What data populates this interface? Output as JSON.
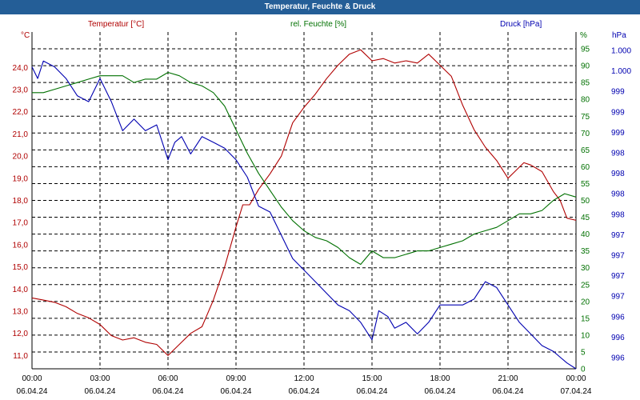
{
  "window": {
    "title": "Temperatur, Feuchte & Druck"
  },
  "colors": {
    "temperature": "#b00000",
    "humidity": "#007000",
    "pressure": "#0000b0",
    "grid": "#000000",
    "titlebar": "#245e97"
  },
  "chart_data": {
    "type": "line",
    "title": "Temperatur, Feuchte & Druck",
    "x_hours": [
      0,
      24
    ],
    "x_ticks": [
      {
        "time": "00:00",
        "date": "06.04.24"
      },
      {
        "time": "03:00",
        "date": "06.04.24"
      },
      {
        "time": "06:00",
        "date": "06.04.24"
      },
      {
        "time": "09:00",
        "date": "06.04.24"
      },
      {
        "time": "12:00",
        "date": "06.04.24"
      },
      {
        "time": "15:00",
        "date": "06.04.24"
      },
      {
        "time": "18:00",
        "date": "06.04.24"
      },
      {
        "time": "21:00",
        "date": "06.04.24"
      },
      {
        "time": "00:00",
        "date": "07.04.24"
      }
    ],
    "axes": {
      "temperature": {
        "label": "Temperatur [°C]",
        "unit": "°C",
        "range": [
          10.4,
          25.6
        ],
        "ticks": [
          "24,0",
          "23,0",
          "22,0",
          "21,0",
          "20,0",
          "19,0",
          "18,0",
          "17,0",
          "16,0",
          "15,0",
          "14,0",
          "13,0",
          "12,0",
          "11,0"
        ]
      },
      "humidity": {
        "label": "rel. Feuchte [%]",
        "unit": "%",
        "range": [
          0,
          100
        ],
        "ticks": [
          "95",
          "90",
          "85",
          "80",
          "75",
          "70",
          "65",
          "60",
          "55",
          "50",
          "45",
          "40",
          "35",
          "30",
          "25",
          "20",
          "15",
          "10",
          "5",
          "0"
        ]
      },
      "pressure": {
        "label": "Druck [hPa]",
        "unit": "hPa",
        "range": [
          995.4,
          1001.2
        ],
        "ticks": [
          "1.000",
          "1.000",
          "999",
          "999",
          "999",
          "998",
          "998",
          "998",
          "998",
          "997",
          "997",
          "997",
          "997",
          "996",
          "996",
          "996"
        ]
      }
    },
    "series": [
      {
        "name": "Temperatur",
        "axis": "temperature",
        "x": [
          0,
          0.5,
          1,
          1.5,
          2,
          2.5,
          3,
          3.5,
          4,
          4.5,
          5,
          5.5,
          6,
          6.5,
          7,
          7.5,
          8,
          8.5,
          9,
          9.3,
          9.6,
          10,
          10.5,
          11,
          11.5,
          12,
          12.5,
          13,
          13.5,
          14,
          14.5,
          15,
          15.5,
          16,
          16.5,
          17,
          17.5,
          18,
          18.5,
          19,
          19.5,
          20,
          20.5,
          21,
          21.3,
          21.7,
          22,
          22.5,
          23,
          23.3,
          23.6,
          24
        ],
        "values": [
          13.6,
          13.5,
          13.4,
          13.2,
          12.9,
          12.7,
          12.4,
          11.9,
          11.7,
          11.8,
          11.6,
          11.5,
          11.0,
          11.5,
          12.0,
          12.3,
          13.5,
          15.0,
          16.8,
          17.8,
          17.8,
          18.5,
          19.2,
          20.0,
          21.5,
          22.2,
          22.8,
          23.5,
          24.1,
          24.6,
          24.8,
          24.3,
          24.4,
          24.2,
          24.3,
          24.2,
          24.6,
          24.1,
          23.6,
          22.3,
          21.2,
          20.4,
          19.8,
          19.0,
          19.3,
          19.7,
          19.6,
          19.3,
          18.4,
          18.0,
          17.2,
          17.1
        ]
      },
      {
        "name": "rel. Feuchte",
        "axis": "humidity",
        "x": [
          0,
          0.5,
          1,
          1.5,
          2,
          2.5,
          3,
          3.5,
          4,
          4.5,
          5,
          5.5,
          6,
          6.5,
          7,
          7.5,
          8,
          8.5,
          9,
          9.5,
          10,
          10.5,
          11,
          11.5,
          12,
          12.5,
          13,
          13.5,
          14,
          14.5,
          15,
          15.5,
          16,
          16.5,
          17,
          17.5,
          18,
          18.5,
          19,
          19.5,
          20,
          20.5,
          21,
          21.5,
          22,
          22.5,
          23,
          23.5,
          24
        ],
        "values": [
          82,
          82,
          83,
          84,
          85,
          86,
          87,
          87,
          87,
          85,
          86,
          86,
          88,
          87,
          85,
          84,
          82,
          78,
          71,
          64,
          58,
          53,
          48,
          44,
          41,
          39,
          38,
          36,
          33,
          31,
          35,
          33,
          33,
          34,
          35,
          35,
          36,
          37,
          38,
          40,
          41,
          42,
          44,
          46,
          46,
          47,
          50,
          52,
          51
        ]
      },
      {
        "name": "Druck",
        "axis": "pressure",
        "x": [
          0,
          0.25,
          0.5,
          1,
          1.5,
          2,
          2.5,
          3,
          3.5,
          4,
          4.5,
          5,
          5.5,
          6,
          6.3,
          6.6,
          7,
          7.5,
          8,
          8.5,
          9,
          9.5,
          10,
          10.5,
          11,
          11.5,
          12,
          12.5,
          13,
          13.5,
          14,
          14.5,
          15,
          15.3,
          15.7,
          16,
          16.5,
          17,
          17.5,
          18,
          18.5,
          19,
          19.5,
          20,
          20.5,
          21,
          21.5,
          22,
          22.5,
          23,
          23.3,
          23.6,
          24
        ],
        "values": [
          1000.6,
          1000.4,
          1000.7,
          1000.6,
          1000.4,
          1000.1,
          1000.0,
          1000.4,
          1000.0,
          999.5,
          999.7,
          999.5,
          999.6,
          999.0,
          999.3,
          999.4,
          999.1,
          999.4,
          999.3,
          999.2,
          999.0,
          998.7,
          998.2,
          998.1,
          997.7,
          997.3,
          997.1,
          996.9,
          996.7,
          996.5,
          996.4,
          996.2,
          995.9,
          996.4,
          996.3,
          996.1,
          996.2,
          996.0,
          996.2,
          996.5,
          996.5,
          996.5,
          996.6,
          996.9,
          996.8,
          996.5,
          996.2,
          996.0,
          995.8,
          995.7,
          995.6,
          995.5,
          995.4
        ]
      }
    ]
  }
}
